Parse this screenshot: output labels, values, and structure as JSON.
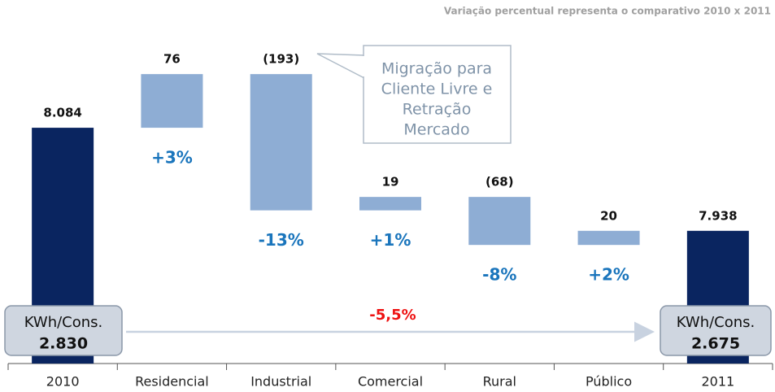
{
  "chart_data": {
    "type": "waterfall",
    "note": "Variação percentual representa o comparativo 2010 x 2011",
    "categories": [
      "2010",
      "Residencial",
      "Industrial",
      "Comercial",
      "Rural",
      "Público",
      "2011"
    ],
    "values": [
      8084,
      76,
      -193,
      19,
      -68,
      20,
      7938
    ],
    "value_labels": [
      "8.084",
      "76",
      "(193)",
      "19",
      "(68)",
      "20",
      "7.938"
    ],
    "is_total": [
      true,
      false,
      false,
      false,
      false,
      false,
      true
    ],
    "change_labels": [
      null,
      "+3%",
      "-13%",
      "+1%",
      "-8%",
      "+2%",
      null
    ],
    "total_color": "#0a2560",
    "delta_color": "#8eadd4",
    "change_color": "#1a75bc",
    "ylim": [
      7750,
      8250
    ],
    "callout": [
      "Migração para",
      "Cliente Livre e",
      "Retração",
      "Mercado"
    ],
    "kwh_boxes": [
      {
        "label": "KWh/Cons.",
        "value": "2.830"
      },
      {
        "label": "KWh/Cons.",
        "value": "2.675"
      }
    ],
    "overall_change": "-5,5%",
    "overall_change_color": "#ee1111"
  }
}
